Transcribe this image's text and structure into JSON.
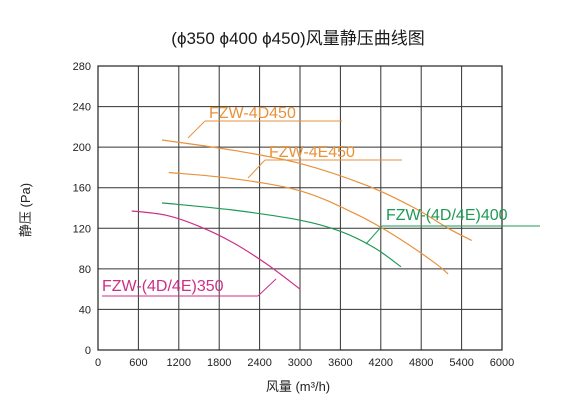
{
  "chart_data": {
    "type": "line",
    "title": "(ϕ350  ϕ400  ϕ450)风量静压曲线图",
    "xlabel": "风量  (m³/h)",
    "ylabel": "静压 (Pa)",
    "xlim": [
      0,
      6000
    ],
    "ylim": [
      0,
      280
    ],
    "x_ticks": [
      "0",
      "600",
      "1200",
      "1800",
      "2400",
      "3000",
      "3600",
      "4200",
      "4800",
      "5400",
      "6000"
    ],
    "y_ticks": [
      "0",
      "40",
      "80",
      "120",
      "160",
      "200",
      "240",
      "280"
    ],
    "grid": true,
    "series": [
      {
        "name": "FZW-4D450",
        "color": "#e8923a",
        "points": [
          [
            950,
            207
          ],
          [
            2000,
            197
          ],
          [
            3000,
            184
          ],
          [
            4000,
            162
          ],
          [
            4700,
            140
          ],
          [
            5200,
            120
          ],
          [
            5550,
            108
          ]
        ]
      },
      {
        "name": "FZW-4E450",
        "color": "#e8923a",
        "points": [
          [
            1050,
            175
          ],
          [
            2000,
            169
          ],
          [
            3000,
            157
          ],
          [
            3800,
            135
          ],
          [
            4400,
            113
          ],
          [
            5000,
            86
          ],
          [
            5200,
            75
          ]
        ]
      },
      {
        "name": "FZW-(4D/4E)400",
        "color": "#1f9a55",
        "points": [
          [
            950,
            145
          ],
          [
            2000,
            138
          ],
          [
            3000,
            128
          ],
          [
            3600,
            117
          ],
          [
            4100,
            101
          ],
          [
            4500,
            82
          ]
        ]
      },
      {
        "name": "FZW-(4D/4E)350",
        "color": "#cc2f86",
        "points": [
          [
            500,
            137
          ],
          [
            1000,
            133
          ],
          [
            1500,
            122
          ],
          [
            2000,
            106
          ],
          [
            2500,
            85
          ],
          [
            3000,
            60
          ]
        ]
      }
    ],
    "annotations": [
      {
        "text": "FZW-4D450",
        "series": 0,
        "color": "#e8923a"
      },
      {
        "text": "FZW-4E450",
        "series": 1,
        "color": "#e8923a"
      },
      {
        "text": "FZW-(4D/4E)400",
        "series": 2,
        "color": "#1f9a55"
      },
      {
        "text": "FZW-(4D/4E)350",
        "series": 3,
        "color": "#cc2f86"
      }
    ]
  }
}
